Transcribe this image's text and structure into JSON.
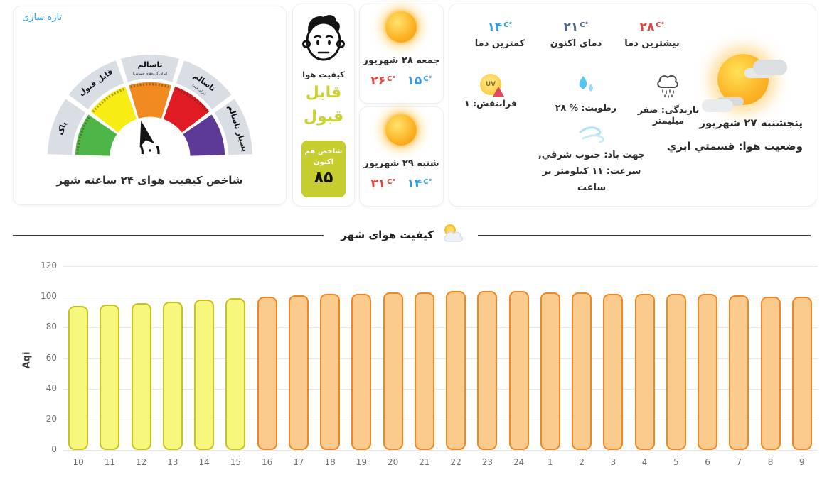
{
  "gauge_card": {
    "refresh_label": "تازه سازی",
    "title": "شاخص کیفیت هوای ۲۴ ساعته شهر",
    "value": "۱۰۱",
    "ring_color": "#d9dee5",
    "segments": [
      {
        "label": "پاک",
        "sublabel": "",
        "color": "#4eb648"
      },
      {
        "label": "قابل قبول",
        "sublabel": "",
        "color": "#f7ec13"
      },
      {
        "label": "ناسالم",
        "sublabel": "(برای گروه‌های حساس)",
        "color": "#f18a21"
      },
      {
        "label": "ناسالم",
        "sublabel": "(برای همه)",
        "color": "#e01b24"
      },
      {
        "label": "بسیار ناسالم",
        "sublabel": "",
        "color": "#5c3a96"
      }
    ]
  },
  "quality_card": {
    "title": "کیفیت هوا",
    "status": [
      "قابل",
      "قبول"
    ],
    "status_color": "#ccd234",
    "badge": {
      "label": "شاخص هم اکنون",
      "value": "۸۵",
      "bg": "#c6cd2f"
    }
  },
  "forecast_cards": [
    {
      "date": "جمعه ۲۸ شهریور",
      "max_temp": "۲۶",
      "min_temp": "۱۵",
      "unit": "C°",
      "max_color": "#e3453c",
      "min_color": "#2f9ce8"
    },
    {
      "date": "شنبه ۲۹ شهریور",
      "max_temp": "۳۱",
      "min_temp": "۱۴",
      "unit": "C°",
      "max_color": "#e3453c",
      "min_color": "#2f9ce8"
    }
  ],
  "today_panel": {
    "temps": [
      {
        "value": "۱۴",
        "unit": "C°",
        "label": "کمترین دما",
        "color": "#2f9ce8"
      },
      {
        "value": "۲۱",
        "unit": "C°",
        "label": "دمای اکنون",
        "color": "#54688c"
      },
      {
        "value": "۲۸",
        "unit": "C°",
        "label": "بیشترین دما",
        "color": "#e3453c"
      }
    ],
    "uv_text": "فرابنفش: ۱",
    "humidity_text": "رطوبت: % ۲۸",
    "rain_text": "بارندگی: صفر میلیمتر",
    "wind_line1": "جهت باد: جنوب شرقي,",
    "wind_line2": "سرعت: ۱۱ کیلومتر بر ساعت",
    "date": "پنجشنبه ۲۷ شهریور",
    "condition": "وضعیت هوا: قسمتي ابري"
  },
  "chart_section": {
    "title": "کیفیت هوای شهر"
  },
  "chart_data": {
    "type": "bar",
    "title": "کیفیت هوای شهر",
    "xlabel": "",
    "ylabel": "Aqi",
    "ylim": [
      0,
      120
    ],
    "yticks": [
      0,
      20,
      40,
      60,
      80,
      100,
      120
    ],
    "grid": true,
    "legend": false,
    "categories": [
      "10",
      "11",
      "12",
      "13",
      "14",
      "15",
      "16",
      "17",
      "18",
      "19",
      "20",
      "21",
      "22",
      "23",
      "24",
      "1",
      "2",
      "3",
      "4",
      "5",
      "6",
      "7",
      "8",
      "9"
    ],
    "values": [
      94,
      95,
      96,
      97,
      98,
      99,
      100,
      101,
      102,
      102,
      103,
      103,
      104,
      104,
      104,
      103,
      103,
      102,
      102,
      102,
      102,
      101,
      100,
      100
    ],
    "bar_colors": [
      "yellow",
      "yellow",
      "yellow",
      "yellow",
      "yellow",
      "yellow",
      "orange",
      "orange",
      "orange",
      "orange",
      "orange",
      "orange",
      "orange",
      "orange",
      "orange",
      "orange",
      "orange",
      "orange",
      "orange",
      "orange",
      "orange",
      "orange",
      "orange",
      "orange"
    ],
    "palette": {
      "yellow": {
        "fill": "#f7f67d",
        "stroke": "#c4c41e"
      },
      "orange": {
        "fill": "#fbca8d",
        "stroke": "#ee8823"
      }
    }
  }
}
